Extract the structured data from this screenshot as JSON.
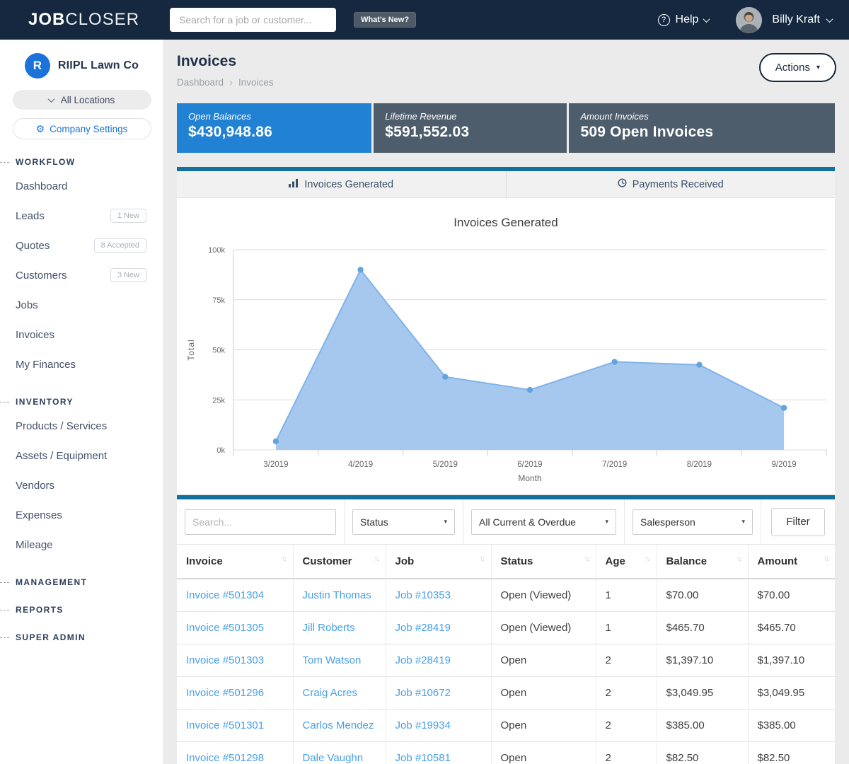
{
  "colors": {
    "navbar_bg": "#15283f",
    "teal_accent": "#12709d",
    "brand_logo_blue": "#1b72d9",
    "link_blue": "#48a0e8",
    "card_blue": "#2181d3",
    "card_slate": "#4e5d6c",
    "chart_fill": "#a6c8ef",
    "chart_line": "#7fb3e9",
    "chart_point": "#65a3e0"
  },
  "icons": {
    "caret_down": "▾",
    "sort": "↑↓",
    "breadcrumb_separator": "›",
    "help_glyph": "?",
    "gear_glyph": "⚙"
  },
  "navbar": {
    "logo_bold": "JOB",
    "logo_light": "CLOSER",
    "search_placeholder": "Search for a job or customer...",
    "whats_new": "What's New?",
    "help": "Help",
    "user_name": "Billy Kraft"
  },
  "sidebar": {
    "company": {
      "initial": "R",
      "name": "RIIPL Lawn Co"
    },
    "locations_label": "All Locations",
    "company_settings": "Company Settings",
    "sections": [
      {
        "label": "WORKFLOW",
        "items": [
          {
            "label": "Dashboard"
          },
          {
            "label": "Leads",
            "badge": "1 New"
          },
          {
            "label": "Quotes",
            "badge": "8 Accepted"
          },
          {
            "label": "Customers",
            "badge": "3 New"
          },
          {
            "label": "Jobs"
          },
          {
            "label": "Invoices"
          },
          {
            "label": "My Finances"
          }
        ]
      },
      {
        "label": "INVENTORY",
        "items": [
          {
            "label": "Products / Services"
          },
          {
            "label": "Assets / Equipment"
          },
          {
            "label": "Vendors"
          },
          {
            "label": "Expenses"
          },
          {
            "label": "Mileage"
          }
        ]
      },
      {
        "label": "MANAGEMENT",
        "items": []
      },
      {
        "label": "REPORTS",
        "items": []
      },
      {
        "label": "SUPER ADMIN",
        "items": []
      }
    ]
  },
  "header": {
    "title": "Invoices",
    "breadcrumb": [
      "Dashboard",
      "Invoices"
    ],
    "actions_label": "Actions"
  },
  "stat_cards": [
    {
      "label": "Open Balances",
      "value": "$430,948.86",
      "color": "#2181d3"
    },
    {
      "label": "Lifetime Revenue",
      "value": "$591,552.03",
      "color": "#4e5d6c"
    },
    {
      "label": "Amount Invoices",
      "value": "509 Open Invoices",
      "color": "#4e5d6c"
    }
  ],
  "tabs": [
    {
      "label": "Invoices Generated",
      "icon": "bar-chart-icon",
      "active": true
    },
    {
      "label": "Payments Received",
      "icon": "clock-icon",
      "active": false
    }
  ],
  "chart_data": {
    "type": "area",
    "title": "Invoices Generated",
    "x": [
      "3/2019",
      "4/2019",
      "5/2019",
      "6/2019",
      "7/2019",
      "8/2019",
      "9/2019"
    ],
    "values": [
      4300,
      90000,
      36500,
      30000,
      44000,
      42500,
      21000
    ],
    "xlabel": "Month",
    "ylabel": "Total",
    "ylim": [
      0,
      100000
    ],
    "yticks": [
      "0k",
      "25k",
      "50k",
      "75k",
      "100k"
    ],
    "grid": true,
    "legend": "none"
  },
  "filters": {
    "search_placeholder": "Search...",
    "selects": [
      "Status",
      "All Current & Overdue",
      "Salesperson"
    ],
    "filter_button": "Filter"
  },
  "table": {
    "columns": [
      "Invoice",
      "Customer",
      "Job",
      "Status",
      "Age",
      "Balance",
      "Amount"
    ],
    "rows": [
      {
        "invoice": "Invoice #501304",
        "customer": "Justin Thomas",
        "job": "Job #10353",
        "status": "Open (Viewed)",
        "age": "1",
        "balance": "$70.00",
        "amount": "$70.00"
      },
      {
        "invoice": "Invoice #501305",
        "customer": "Jill Roberts",
        "job": "Job #28419",
        "status": "Open (Viewed)",
        "age": "1",
        "balance": "$465.70",
        "amount": "$465.70"
      },
      {
        "invoice": "Invoice #501303",
        "customer": "Tom Watson",
        "job": "Job #28419",
        "status": "Open",
        "age": "2",
        "balance": "$1,397.10",
        "amount": "$1,397.10"
      },
      {
        "invoice": "Invoice #501296",
        "customer": "Craig Acres",
        "job": "Job #10672",
        "status": "Open",
        "age": "2",
        "balance": "$3,049.95",
        "amount": "$3,049.95"
      },
      {
        "invoice": "Invoice #501301",
        "customer": "Carlos Mendez",
        "job": "Job #19934",
        "status": "Open",
        "age": "2",
        "balance": "$385.00",
        "amount": "$385.00"
      },
      {
        "invoice": "Invoice #501298",
        "customer": "Dale Vaughn",
        "job": "Job #10581",
        "status": "Open",
        "age": "2",
        "balance": "$82.50",
        "amount": "$82.50"
      }
    ]
  }
}
